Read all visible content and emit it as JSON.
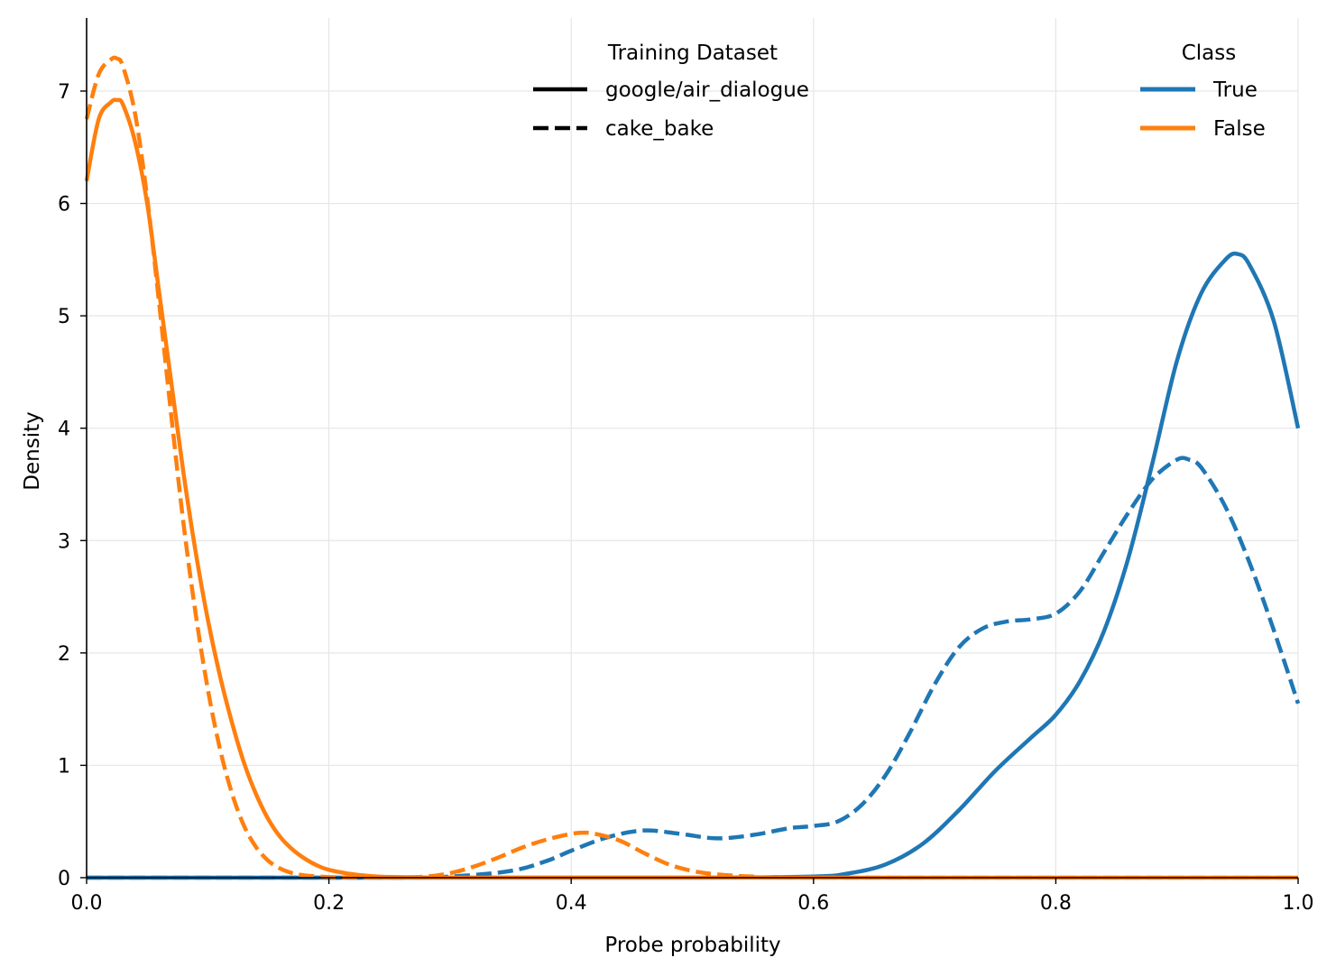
{
  "chart_data": {
    "type": "line",
    "title": "",
    "xlabel": "Probe probability",
    "ylabel": "Density",
    "xlim": [
      0.0,
      1.0
    ],
    "ylim": [
      0,
      7.65
    ],
    "grid": true,
    "x_ticks": [
      "0.0",
      "0.2",
      "0.4",
      "0.6",
      "0.8",
      "1.0"
    ],
    "y_ticks": [
      "0",
      "1",
      "2",
      "3",
      "4",
      "5",
      "6",
      "7"
    ],
    "colors": {
      "True": "#1f77b4",
      "False": "#ff7f0e",
      "axis": "#000000",
      "grid": "#e6e6e6"
    },
    "legends": [
      {
        "title": "Training Dataset",
        "position": "top-center",
        "entries": [
          {
            "label": "google/air_dialogue",
            "style": "solid"
          },
          {
            "label": "cake_bake",
            "style": "dashed"
          }
        ]
      },
      {
        "title": "Class",
        "position": "top-right",
        "entries": [
          {
            "label": "True",
            "color": "#1f77b4"
          },
          {
            "label": "False",
            "color": "#ff7f0e"
          }
        ]
      }
    ],
    "series": [
      {
        "name": "google/air_dialogue - True",
        "class": "True",
        "dataset": "google/air_dialogue",
        "style": "solid",
        "x": [
          0,
          0.2,
          0.5,
          0.6,
          0.63,
          0.66,
          0.69,
          0.72,
          0.75,
          0.78,
          0.8,
          0.82,
          0.84,
          0.86,
          0.88,
          0.9,
          0.92,
          0.94,
          0.95,
          0.96,
          0.98,
          1.0
        ],
        "y": [
          0,
          0,
          0,
          0.01,
          0.04,
          0.12,
          0.3,
          0.6,
          0.95,
          1.25,
          1.45,
          1.75,
          2.2,
          2.85,
          3.7,
          4.6,
          5.2,
          5.5,
          5.55,
          5.45,
          4.95,
          4.0
        ]
      },
      {
        "name": "cake_bake - True",
        "class": "True",
        "dataset": "cake_bake",
        "style": "dashed",
        "x": [
          0,
          0.25,
          0.3,
          0.35,
          0.38,
          0.4,
          0.43,
          0.46,
          0.49,
          0.52,
          0.55,
          0.58,
          0.6,
          0.62,
          0.64,
          0.66,
          0.68,
          0.7,
          0.72,
          0.74,
          0.76,
          0.78,
          0.8,
          0.82,
          0.84,
          0.86,
          0.88,
          0.9,
          0.91,
          0.92,
          0.94,
          0.96,
          0.98,
          1.0
        ],
        "y": [
          0,
          0,
          0.01,
          0.06,
          0.15,
          0.24,
          0.36,
          0.42,
          0.39,
          0.35,
          0.38,
          0.44,
          0.46,
          0.5,
          0.65,
          0.92,
          1.3,
          1.72,
          2.05,
          2.22,
          2.28,
          2.3,
          2.35,
          2.55,
          2.9,
          3.25,
          3.55,
          3.72,
          3.72,
          3.65,
          3.3,
          2.8,
          2.2,
          1.55
        ]
      },
      {
        "name": "google/air_dialogue - False",
        "class": "False",
        "dataset": "google/air_dialogue",
        "style": "solid",
        "x": [
          0,
          0.01,
          0.02,
          0.025,
          0.03,
          0.04,
          0.05,
          0.06,
          0.07,
          0.08,
          0.09,
          0.1,
          0.11,
          0.12,
          0.13,
          0.14,
          0.15,
          0.16,
          0.17,
          0.18,
          0.19,
          0.2,
          0.22,
          0.24,
          0.26,
          0.28,
          0.3,
          1.0
        ],
        "y": [
          6.2,
          6.75,
          6.9,
          6.92,
          6.88,
          6.55,
          6.0,
          5.2,
          4.4,
          3.6,
          2.9,
          2.3,
          1.8,
          1.38,
          1.02,
          0.74,
          0.52,
          0.36,
          0.25,
          0.17,
          0.11,
          0.07,
          0.03,
          0.01,
          0.005,
          0.002,
          0,
          0
        ]
      },
      {
        "name": "cake_bake - False",
        "class": "False",
        "dataset": "cake_bake",
        "style": "dashed",
        "x": [
          0,
          0.01,
          0.02,
          0.025,
          0.03,
          0.04,
          0.05,
          0.06,
          0.07,
          0.08,
          0.09,
          0.1,
          0.11,
          0.12,
          0.13,
          0.14,
          0.15,
          0.16,
          0.17,
          0.18,
          0.2,
          0.22,
          0.25,
          0.28,
          0.3,
          0.32,
          0.34,
          0.36,
          0.38,
          0.4,
          0.41,
          0.42,
          0.44,
          0.46,
          0.48,
          0.5,
          0.52,
          0.55,
          0.6,
          1.0
        ],
        "y": [
          6.75,
          7.15,
          7.28,
          7.29,
          7.22,
          6.8,
          6.05,
          5.1,
          4.1,
          3.15,
          2.35,
          1.68,
          1.15,
          0.75,
          0.46,
          0.27,
          0.15,
          0.08,
          0.04,
          0.02,
          0.005,
          0.001,
          0,
          0.01,
          0.04,
          0.1,
          0.18,
          0.27,
          0.34,
          0.39,
          0.4,
          0.39,
          0.33,
          0.22,
          0.12,
          0.06,
          0.03,
          0.01,
          0,
          0
        ]
      }
    ]
  }
}
